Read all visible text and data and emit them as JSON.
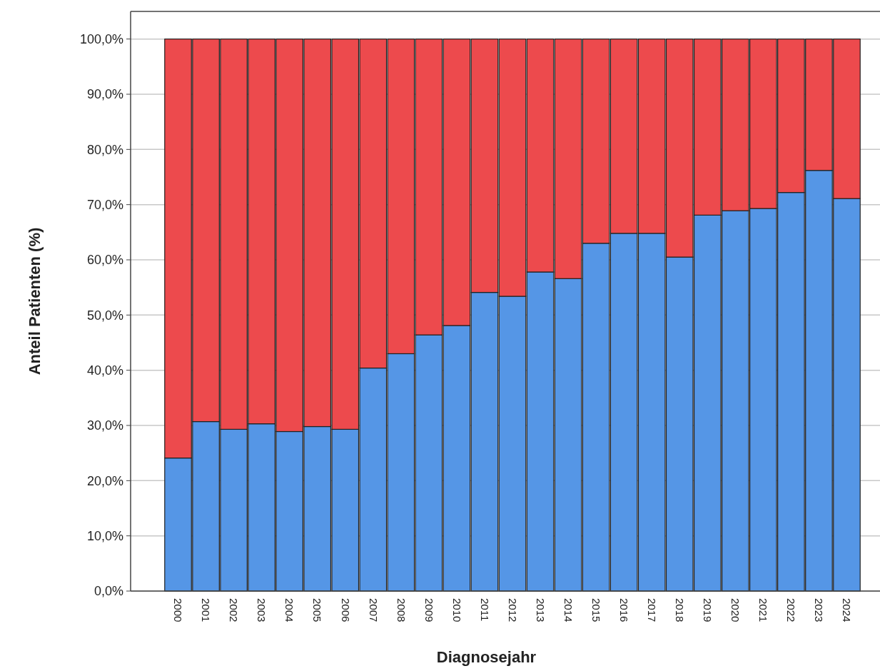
{
  "chart_data": {
    "type": "bar",
    "stacked": true,
    "xlabel": "Diagnosejahr",
    "ylabel": "Anteil Patienten (%)",
    "categories": [
      "2000",
      "2001",
      "2002",
      "2003",
      "2004",
      "2005",
      "2006",
      "2007",
      "2008",
      "2009",
      "2010",
      "2011",
      "2012",
      "2013",
      "2014",
      "2015",
      "2016",
      "2017",
      "2018",
      "2019",
      "2020",
      "2021",
      "2022",
      "2023",
      "2024"
    ],
    "series": [
      {
        "color": "#5596e6",
        "values": [
          24.1,
          30.7,
          29.3,
          30.3,
          28.9,
          29.8,
          29.3,
          40.4,
          43.0,
          46.4,
          48.1,
          54.1,
          53.4,
          57.8,
          56.6,
          63.0,
          64.8,
          64.8,
          60.5,
          68.1,
          68.9,
          69.3,
          72.2,
          76.2,
          71.1
        ]
      },
      {
        "color": "#ed4a4d",
        "values": [
          75.9,
          69.3,
          70.7,
          69.7,
          71.1,
          70.2,
          70.7,
          59.6,
          57.0,
          53.6,
          51.9,
          45.9,
          46.6,
          42.2,
          43.4,
          37.0,
          35.2,
          35.2,
          39.5,
          31.9,
          31.1,
          30.7,
          27.8,
          23.8,
          28.9
        ]
      }
    ],
    "ylim": [
      0,
      105
    ],
    "yticks": [
      {
        "value": 0,
        "label": "0,0%"
      },
      {
        "value": 10,
        "label": "10,0%"
      },
      {
        "value": 20,
        "label": "20,0%"
      },
      {
        "value": 30,
        "label": "30,0%"
      },
      {
        "value": 40,
        "label": "40,0%"
      },
      {
        "value": 50,
        "label": "50,0%"
      },
      {
        "value": 60,
        "label": "60,0%"
      },
      {
        "value": 70,
        "label": "70,0%"
      },
      {
        "value": 80,
        "label": "80,0%"
      },
      {
        "value": 90,
        "label": "90,0%"
      },
      {
        "value": 100,
        "label": "100,0%"
      }
    ],
    "grid": "y"
  }
}
